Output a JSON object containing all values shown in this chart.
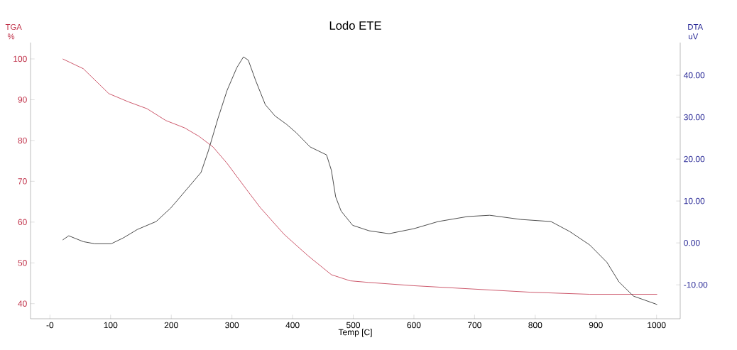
{
  "chart_data": {
    "type": "line",
    "title": "Lodo ETE",
    "xlabel": "Temp  [C]",
    "ylabel": "TGA %",
    "y2label": "DTA uV",
    "xlim": [
      -32,
      1039
    ],
    "xticks": [
      {
        "value": 0,
        "label": "-0"
      },
      100,
      200,
      300,
      400,
      500,
      600,
      700,
      800,
      900,
      1000
    ],
    "ylim": [
      36.3,
      104
    ],
    "yticks": [
      40,
      50,
      60,
      70,
      80,
      90,
      100
    ],
    "y2lim": [
      -18.1,
      47.8
    ],
    "y2ticks": [
      {
        "value": -10,
        "label": "-10.00"
      },
      {
        "value": 0,
        "label": "0.00"
      },
      {
        "value": 10,
        "label": "10.00"
      },
      {
        "value": 20,
        "label": "20.00"
      },
      {
        "value": 30,
        "label": "30.00"
      },
      {
        "value": 40,
        "label": "40.00"
      }
    ],
    "grid": false,
    "legend": false,
    "marker": "none",
    "line_style": "solid",
    "series": [
      {
        "color": "#c03048",
        "axis": "y",
        "x": [
          21,
          55,
          97,
          129,
          160,
          191,
          222,
          246,
          269,
          292,
          324,
          347,
          386,
          425,
          464,
          495,
          526,
          600,
          696,
          793,
          890,
          1001
        ],
        "values": [
          100,
          97.6,
          91.5,
          89.5,
          87.8,
          84.9,
          83.1,
          81,
          78.4,
          74.4,
          68,
          63.5,
          57,
          51.8,
          47.1,
          45.6,
          45.2,
          44.4,
          43.6,
          42.8,
          42.3,
          42.3
        ]
      },
      {
        "color": "#202020",
        "axis": "y2",
        "x": [
          21,
          31,
          55,
          74,
          101,
          121,
          144,
          175,
          199,
          222,
          249,
          261,
          277,
          292,
          308,
          319,
          327,
          339,
          355,
          371,
          390,
          406,
          429,
          456,
          464,
          471,
          480,
          499,
          526,
          559,
          600,
          640,
          689,
          725,
          776,
          826,
          857,
          890,
          918,
          938,
          962,
          1001
        ],
        "values": [
          0.7,
          1.7,
          0.3,
          -0.2,
          -0.2,
          1.2,
          3.2,
          5.1,
          8.3,
          12.2,
          16.8,
          21.9,
          29.7,
          36.4,
          41.8,
          44.4,
          43.6,
          38.8,
          33,
          30.3,
          28.3,
          26.3,
          22.9,
          21,
          17.3,
          11,
          7.6,
          4.2,
          2.9,
          2.2,
          3.4,
          5.1,
          6.3,
          6.6,
          5.6,
          5.1,
          2.7,
          -0.5,
          -4.6,
          -9.3,
          -12.7,
          -14.7
        ]
      }
    ]
  }
}
